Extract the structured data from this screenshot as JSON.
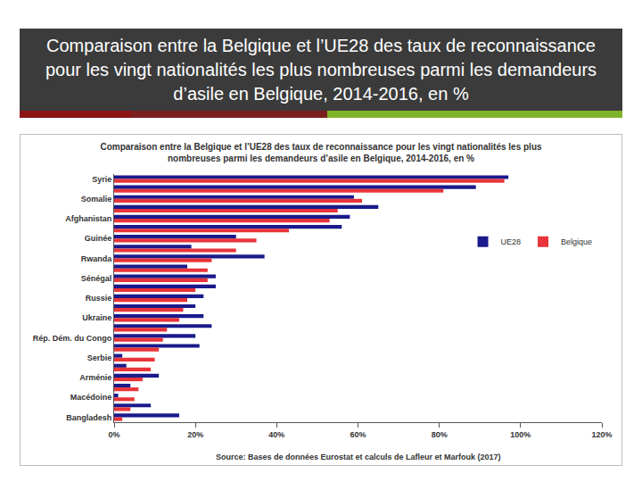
{
  "slide": {
    "title": "Comparaison entre la Belgique et l’UE28 des taux de reconnaissance pour les vingt nationalités les plus nombreuses parmi les demandeurs d’asile en Belgique, 2014-2016, en %"
  },
  "chart_data": {
    "type": "bar",
    "title": "Comparaison entre la Belgique et l’UE28 des taux de reconnaissance pour les vingt nationalités les plus nombreuses parmi les demandeurs d’asile en Belgique, 2014-2016, en %",
    "annotations": [
      "Source: Bases de données Eurostat et calculs de Lafleur et Marfouk (2017)"
    ],
    "orientation": "horizontal",
    "categories": [
      "Syrie",
      null,
      "Somalie",
      null,
      "Afghanistan",
      null,
      "Guinée",
      null,
      "Rwanda",
      null,
      "Sénégal",
      null,
      "Russie",
      null,
      "Ukraine",
      null,
      "Rép. Dém. du Congo",
      null,
      "Serbie",
      null,
      "Arménie",
      null,
      "Macédoine",
      null,
      "Bangladesh"
    ],
    "series": [
      {
        "name": "UE28",
        "color": "#1a1a8c",
        "values": [
          97,
          89,
          59,
          65,
          58,
          56,
          30,
          19,
          37,
          18,
          25,
          25,
          22,
          20,
          22,
          24,
          20,
          21,
          2,
          3,
          11,
          4,
          1,
          9,
          16
        ]
      },
      {
        "name": "Belgique",
        "color": "#e8343a",
        "values": [
          96,
          81,
          61,
          55,
          53,
          43,
          35,
          30,
          24,
          23,
          23,
          20,
          18,
          17,
          16,
          13,
          12,
          11,
          10,
          9,
          7,
          6,
          5,
          4,
          2
        ]
      }
    ],
    "xlim": [
      0,
      120
    ],
    "xticks": [
      {
        "value": 0,
        "label": "0%"
      },
      {
        "value": 20,
        "label": "20%"
      },
      {
        "value": 40,
        "label": "40%"
      },
      {
        "value": 60,
        "label": "60%"
      },
      {
        "value": 80,
        "label": "80%"
      },
      {
        "value": 100,
        "label": "100%"
      },
      {
        "value": 120,
        "label": "120%"
      }
    ],
    "grid": false,
    "legend": "right"
  }
}
